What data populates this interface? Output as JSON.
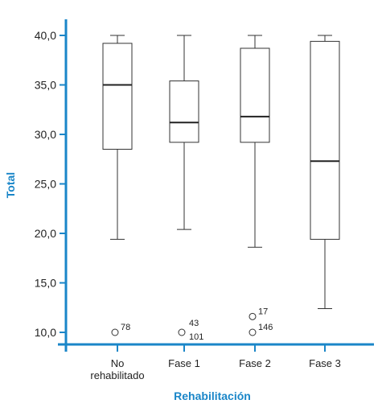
{
  "chart_data": {
    "type": "boxplot",
    "xlabel": "Rehabilitación",
    "ylabel": "Total",
    "ylim": [
      9.0,
      41.5
    ],
    "yticks": [
      "40,0",
      "35,0",
      "30,0",
      "25,0",
      "20,0",
      "15,0",
      "10,0"
    ],
    "ytick_values": [
      40,
      35,
      30,
      25,
      20,
      15,
      10
    ],
    "axis_color": "#1a86c8",
    "categories": [
      {
        "label_lines": [
          "No",
          "rehabilitado"
        ],
        "whisker_low": 19.4,
        "q1": 28.5,
        "median": 35.0,
        "q3": 39.2,
        "whisker_high": 40.0,
        "outliers": [
          {
            "value": 10.0,
            "label": "78"
          }
        ]
      },
      {
        "label_lines": [
          "Fase 1"
        ],
        "whisker_low": 20.4,
        "q1": 29.2,
        "median": 31.2,
        "q3": 35.4,
        "whisker_high": 40.0,
        "outliers": [
          {
            "value": 10.0,
            "labels": [
              "43",
              "101"
            ]
          }
        ]
      },
      {
        "label_lines": [
          "Fase 2"
        ],
        "whisker_low": 18.6,
        "q1": 29.2,
        "median": 31.8,
        "q3": 38.7,
        "whisker_high": 40.0,
        "outliers": [
          {
            "value": 11.6,
            "label": "17"
          },
          {
            "value": 10.0,
            "label": "146"
          }
        ]
      },
      {
        "label_lines": [
          "Fase 3"
        ],
        "whisker_low": 12.4,
        "q1": 19.4,
        "median": 27.3,
        "q3": 39.4,
        "whisker_high": 40.0,
        "outliers": []
      }
    ]
  }
}
